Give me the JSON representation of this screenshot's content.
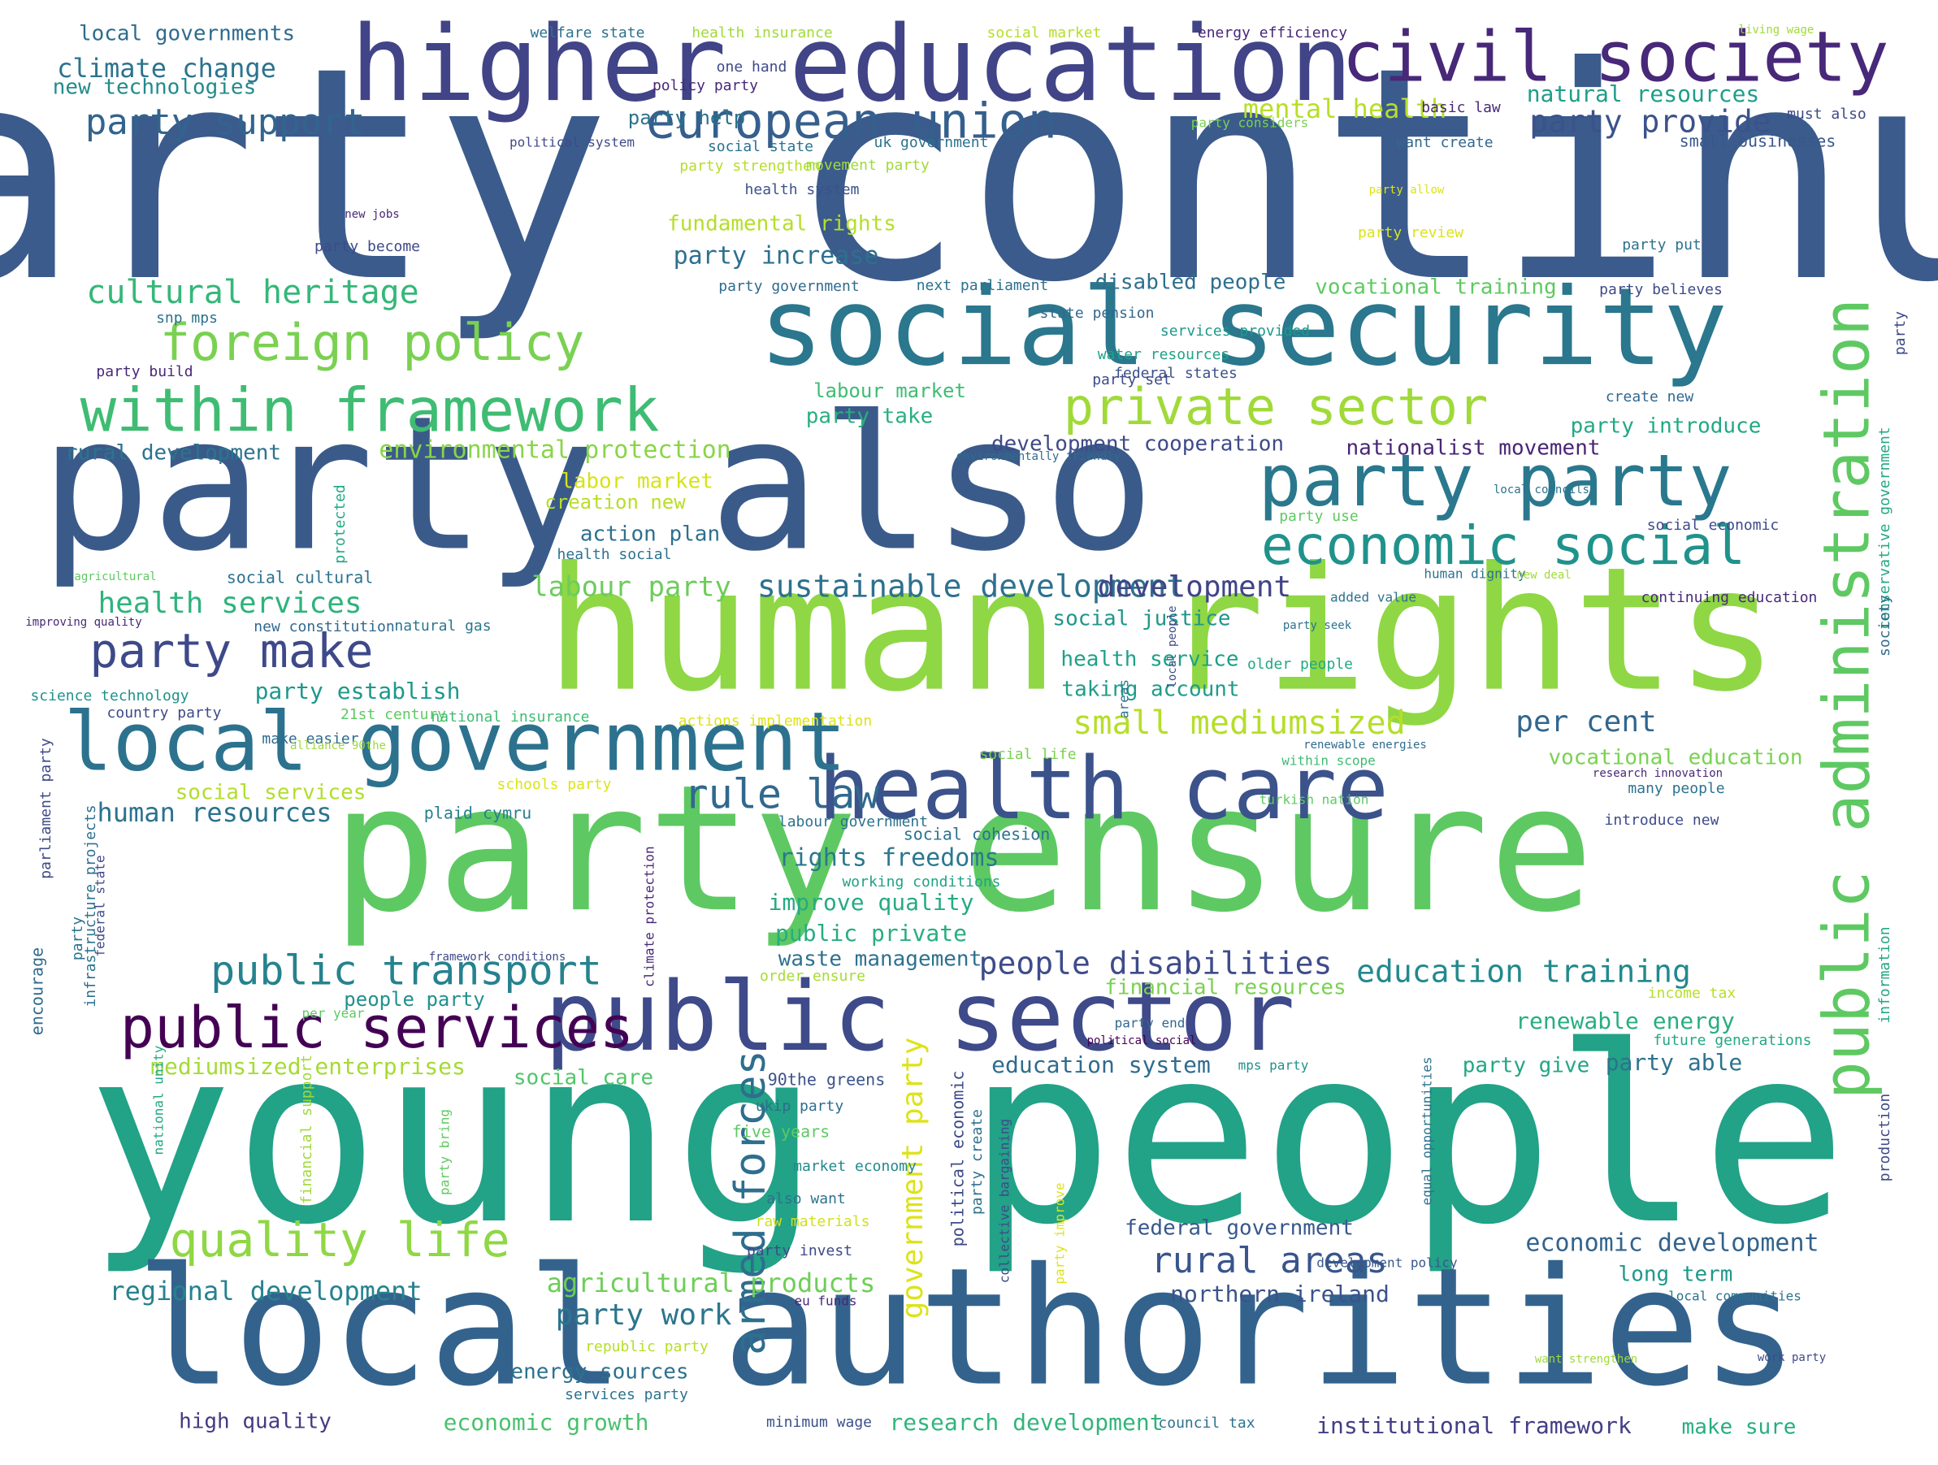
{
  "words": [
    {
      "text": "party continue",
      "color": "#3b5b8c"
    },
    {
      "text": "young people",
      "color": "#22a287"
    },
    {
      "text": "human rights",
      "color": "#8fd744"
    },
    {
      "text": "local authorities",
      "color": "#33638d"
    },
    {
      "text": "party ensure",
      "color": "#5ec962"
    },
    {
      "text": "party also",
      "color": "#3a5b8a"
    },
    {
      "text": "social security",
      "color": "#2a778e"
    },
    {
      "text": "higher education",
      "color": "#414487"
    },
    {
      "text": "public sector",
      "color": "#3e4a89"
    },
    {
      "text": "civil society",
      "color": "#482878"
    },
    {
      "text": "health care",
      "color": "#3b528b"
    },
    {
      "text": "local government",
      "color": "#2c728e"
    },
    {
      "text": "public administration",
      "color": "#5ec962"
    },
    {
      "text": "public services",
      "color": "#440154"
    },
    {
      "text": "within framework",
      "color": "#3fbc73"
    },
    {
      "text": "private sector",
      "color": "#a0da39"
    },
    {
      "text": "foreign policy",
      "color": "#7ad151"
    },
    {
      "text": "party party",
      "color": "#2a788e"
    },
    {
      "text": "economic social",
      "color": "#20928c"
    },
    {
      "text": "european union",
      "color": "#355f8d"
    },
    {
      "text": "public transport",
      "color": "#26828e"
    },
    {
      "text": "party make",
      "color": "#3e4989"
    },
    {
      "text": "quality life",
      "color": "#8fd744"
    },
    {
      "text": "rule law",
      "color": "#31688e"
    },
    {
      "text": "rural areas",
      "color": "#39558c"
    },
    {
      "text": "armed forces",
      "color": "#2e6e8e"
    },
    {
      "text": "government party",
      "color": "#dde318"
    },
    {
      "text": "education training",
      "color": "#23898e"
    },
    {
      "text": "people disabilities",
      "color": "#3e4c8a"
    },
    {
      "text": "small mediumsized",
      "color": "#b5de2b"
    },
    {
      "text": "sustainable development",
      "color": "#2d718e"
    },
    {
      "text": "party support",
      "color": "#32648e"
    },
    {
      "text": "party provide",
      "color": "#3b528b"
    },
    {
      "text": "mental health",
      "color": "#b8de29"
    },
    {
      "text": "natural resources",
      "color": "#1f9e89"
    },
    {
      "text": "climate change",
      "color": "#2c738e"
    },
    {
      "text": "local governments",
      "color": "#2f6b8e"
    },
    {
      "text": "new technologies",
      "color": "#238a8d"
    },
    {
      "text": "cultural heritage",
      "color": "#35b779"
    },
    {
      "text": "fundamental rights",
      "color": "#b5de2b"
    },
    {
      "text": "party increase",
      "color": "#2d708e"
    },
    {
      "text": "disabled people",
      "color": "#2e6f8e"
    },
    {
      "text": "vocational training",
      "color": "#5ec962"
    },
    {
      "text": "labour party",
      "color": "#6ccd5a"
    },
    {
      "text": "health services",
      "color": "#2eb37c"
    },
    {
      "text": "development",
      "color": "#414487"
    },
    {
      "text": "party establish",
      "color": "#1f988b"
    },
    {
      "text": "human resources",
      "color": "#2c728e"
    },
    {
      "text": "rights freedoms",
      "color": "#2a788e"
    },
    {
      "text": "improve quality",
      "color": "#25ab82"
    },
    {
      "text": "public private",
      "color": "#27ad81"
    },
    {
      "text": "waste management",
      "color": "#2d718e"
    },
    {
      "text": "education system",
      "color": "#2f6c8e"
    },
    {
      "text": "renewable energy",
      "color": "#28ae80"
    },
    {
      "text": "per cent",
      "color": "#31668e"
    },
    {
      "text": "vocational education",
      "color": "#7ad151"
    },
    {
      "text": "mediumsized enterprises",
      "color": "#a5db36"
    },
    {
      "text": "social care",
      "color": "#52c569"
    },
    {
      "text": "regional development",
      "color": "#26828e"
    },
    {
      "text": "agricultural products",
      "color": "#6ece58"
    },
    {
      "text": "party work",
      "color": "#2b758e"
    },
    {
      "text": "energy sources",
      "color": "#2d708e"
    },
    {
      "text": "economic growth",
      "color": "#4ac16d"
    },
    {
      "text": "research development",
      "color": "#31b57b"
    },
    {
      "text": "institutional framework",
      "color": "#433e85"
    },
    {
      "text": "make sure",
      "color": "#27ad81"
    },
    {
      "text": "high quality",
      "color": "#443a83"
    },
    {
      "text": "economic development",
      "color": "#33638d"
    },
    {
      "text": "long term",
      "color": "#1f988b"
    },
    {
      "text": "northern ireland",
      "color": "#3b528b"
    },
    {
      "text": "federal government",
      "color": "#38588c"
    },
    {
      "text": "party give",
      "color": "#22a785"
    },
    {
      "text": "party able",
      "color": "#2c738e"
    },
    {
      "text": "environmental protection",
      "color": "#89d548"
    },
    {
      "text": "development cooperation",
      "color": "#3e4a89"
    },
    {
      "text": "nationalist movement",
      "color": "#482576"
    },
    {
      "text": "party introduce",
      "color": "#22a884"
    },
    {
      "text": "party take",
      "color": "#29af7f"
    },
    {
      "text": "labour market",
      "color": "#3fbc73"
    },
    {
      "text": "rural development",
      "color": "#2c738e"
    },
    {
      "text": "action plan",
      "color": "#2d708e"
    },
    {
      "text": "labor market",
      "color": "#d8e219"
    },
    {
      "text": "creation new",
      "color": "#b8de29"
    },
    {
      "text": "social justice",
      "color": "#1f958b"
    },
    {
      "text": "health service",
      "color": "#1fa088"
    },
    {
      "text": "taking account",
      "color": "#1e9c89"
    },
    {
      "text": "financial resources",
      "color": "#7ad151"
    },
    {
      "text": "people party",
      "color": "#21908d"
    },
    {
      "text": "party help",
      "color": "#2c728e"
    },
    {
      "text": "social services",
      "color": "#b2dd2d"
    },
    {
      "text": "small businesses",
      "color": "#38588c"
    },
    {
      "text": "science technology",
      "color": "#20928c"
    },
    {
      "text": "country party",
      "color": "#3e4a89"
    },
    {
      "text": "plaid cymru",
      "color": "#27808e"
    },
    {
      "text": "21st century",
      "color": "#5ec962"
    },
    {
      "text": "national insurance",
      "color": "#3fbc73"
    },
    {
      "text": "make easier",
      "color": "#2f6b8e"
    },
    {
      "text": "social cultural",
      "color": "#2c728e"
    },
    {
      "text": "new constitution",
      "color": "#31688e"
    },
    {
      "text": "natural gas",
      "color": "#2a778e"
    },
    {
      "text": "social life",
      "color": "#7ad151"
    },
    {
      "text": "social cohesion",
      "color": "#2c728e"
    },
    {
      "text": "working conditions",
      "color": "#20a386"
    },
    {
      "text": "order ensure",
      "color": "#a8db34"
    },
    {
      "text": "90the greens",
      "color": "#3b528b"
    },
    {
      "text": "ukip party",
      "color": "#2e6e8e"
    },
    {
      "text": "five years",
      "color": "#5ec962"
    },
    {
      "text": "market economy",
      "color": "#23898e"
    },
    {
      "text": "also want",
      "color": "#2c728e"
    },
    {
      "text": "raw materials",
      "color": "#d0e11c"
    },
    {
      "text": "party invest",
      "color": "#3e4a89"
    },
    {
      "text": "eu funds",
      "color": "#482878"
    },
    {
      "text": "republic party",
      "color": "#b5de2b"
    },
    {
      "text": "services party",
      "color": "#2c728e"
    },
    {
      "text": "minimum wage",
      "color": "#3b528b"
    },
    {
      "text": "council tax",
      "color": "#2c728e"
    },
    {
      "text": "per year",
      "color": "#5ec962"
    },
    {
      "text": "party end",
      "color": "#31688e"
    },
    {
      "text": "political social",
      "color": "#440154"
    },
    {
      "text": "mps party",
      "color": "#21918c"
    },
    {
      "text": "future generations",
      "color": "#22a884"
    },
    {
      "text": "income tax",
      "color": "#b8de29"
    },
    {
      "text": "introduce new",
      "color": "#3e4a89"
    },
    {
      "text": "turkish nation",
      "color": "#5ec962"
    },
    {
      "text": "many people",
      "color": "#2c728e"
    },
    {
      "text": "within scope",
      "color": "#3fbc73"
    },
    {
      "text": "renewable energies",
      "color": "#2f6b8e"
    },
    {
      "text": "research innovation",
      "color": "#482878"
    },
    {
      "text": "development policy",
      "color": "#38588c"
    },
    {
      "text": "local communities",
      "color": "#2c728e"
    },
    {
      "text": "want strengthen",
      "color": "#a0da39"
    },
    {
      "text": "work party",
      "color": "#3e4a89"
    },
    {
      "text": "added value",
      "color": "#2c728e"
    },
    {
      "text": "human dignity",
      "color": "#2c728e"
    },
    {
      "text": "new deal",
      "color": "#a0da39"
    },
    {
      "text": "continuing education",
      "color": "#482878"
    },
    {
      "text": "older people",
      "color": "#22a884"
    },
    {
      "text": "party use",
      "color": "#5ec962"
    },
    {
      "text": "social economic",
      "color": "#3e4a89"
    },
    {
      "text": "local councils",
      "color": "#2c728e"
    },
    {
      "text": "create new",
      "color": "#31688e"
    },
    {
      "text": "environmentally friendly",
      "color": "#2f6b8e"
    },
    {
      "text": "federal states",
      "color": "#3b528b"
    },
    {
      "text": "water resources",
      "color": "#20a386"
    },
    {
      "text": "services provided",
      "color": "#1f988b"
    },
    {
      "text": "state pension",
      "color": "#31688e"
    },
    {
      "text": "party set",
      "color": "#3e4a89"
    },
    {
      "text": "snp mps",
      "color": "#2c728e"
    },
    {
      "text": "party build",
      "color": "#482878"
    },
    {
      "text": "party government",
      "color": "#2f6b8e"
    },
    {
      "text": "next parliament",
      "color": "#2c728e"
    },
    {
      "text": "party become",
      "color": "#3e4a89"
    },
    {
      "text": "new jobs",
      "color": "#482878"
    },
    {
      "text": "health system",
      "color": "#3b528b"
    },
    {
      "text": "party strengthen",
      "color": "#b5de2b"
    },
    {
      "text": "movement party",
      "color": "#a0da39"
    },
    {
      "text": "social state",
      "color": "#2c728e"
    },
    {
      "text": "political system",
      "color": "#3e4a89"
    },
    {
      "text": "uk government",
      "color": "#2c728e"
    },
    {
      "text": "want create",
      "color": "#31688e"
    },
    {
      "text": "party considers",
      "color": "#7ad151"
    },
    {
      "text": "basic law",
      "color": "#482878"
    },
    {
      "text": "must also",
      "color": "#3e4a89"
    },
    {
      "text": "living wage",
      "color": "#a0da39"
    },
    {
      "text": "energy efficiency",
      "color": "#482878"
    },
    {
      "text": "social market",
      "color": "#b5de2b"
    },
    {
      "text": "health insurance",
      "color": "#a0da39"
    },
    {
      "text": "welfare state",
      "color": "#2c728e"
    },
    {
      "text": "one hand",
      "color": "#3e4a89"
    },
    {
      "text": "policy party",
      "color": "#482878"
    },
    {
      "text": "party allow",
      "color": "#dde318"
    },
    {
      "text": "party review",
      "color": "#dde318"
    },
    {
      "text": "party put",
      "color": "#2c728e"
    },
    {
      "text": "party believes",
      "color": "#3e4a89"
    },
    {
      "text": "party",
      "color": "#3e4a89"
    },
    {
      "text": "conservative government",
      "color": "#22a884"
    },
    {
      "text": "society",
      "color": "#2f6b8e"
    },
    {
      "text": "information",
      "color": "#22a884"
    },
    {
      "text": "production",
      "color": "#3e4a89"
    },
    {
      "text": "agricultural",
      "color": "#5ec962"
    },
    {
      "text": "improving quality",
      "color": "#482878"
    },
    {
      "text": "health social",
      "color": "#2c728e"
    },
    {
      "text": "actions implementation",
      "color": "#dde318"
    },
    {
      "text": "alliance 90the",
      "color": "#a0da39"
    },
    {
      "text": "schools party",
      "color": "#dde318"
    },
    {
      "text": "labour government",
      "color": "#2c728e"
    },
    {
      "text": "framework conditions",
      "color": "#3e4a89"
    },
    {
      "text": "party seek",
      "color": "#2c728e"
    },
    {
      "text": "local people",
      "color": "#3e4a89"
    },
    {
      "text": "areas",
      "color": "#2c728e"
    },
    {
      "text": "protected",
      "color": "#22a884"
    },
    {
      "text": "parliament party",
      "color": "#3e4a89"
    },
    {
      "text": "encourage",
      "color": "#2f6b8e"
    },
    {
      "text": "party",
      "color": "#2c728e"
    },
    {
      "text": "infrastructure projects",
      "color": "#2c728e"
    },
    {
      "text": "federal state",
      "color": "#3e4a89"
    },
    {
      "text": "national unity",
      "color": "#22a884"
    },
    {
      "text": "financial support",
      "color": "#a0da39"
    },
    {
      "text": "party bring",
      "color": "#5ec962"
    },
    {
      "text": "political economic",
      "color": "#3e4a89"
    },
    {
      "text": "party create",
      "color": "#2c728e"
    },
    {
      "text": "collective bargaining",
      "color": "#3e4a89"
    },
    {
      "text": "party improve",
      "color": "#dde318"
    },
    {
      "text": "equal opportunities",
      "color": "#2c728e"
    },
    {
      "text": "climate protection",
      "color": "#482878"
    },
    {
      "text": "social political",
      "color": "#2c728e"
    }
  ]
}
